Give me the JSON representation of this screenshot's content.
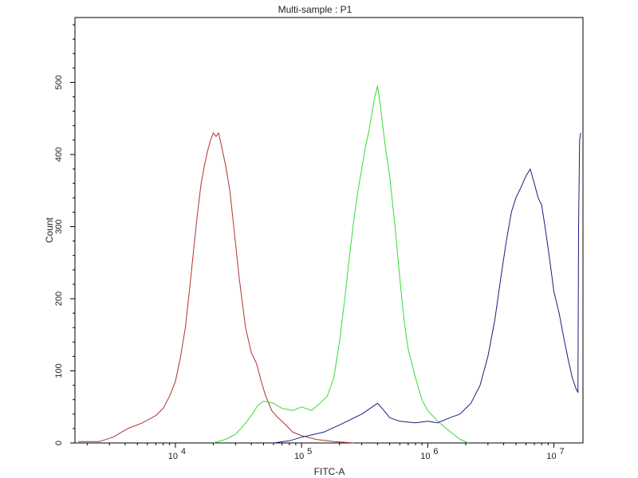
{
  "chart_data": {
    "type": "line",
    "title": "Multi-sample : P1",
    "xlabel": "FITC-A",
    "ylabel": "Count",
    "x_scale": "log",
    "xlim": [
      1600,
      17000000
    ],
    "ylim": [
      0,
      590
    ],
    "x_ticks": [
      {
        "value": 10000,
        "base": "10",
        "exp": "4"
      },
      {
        "value": 100000,
        "base": "10",
        "exp": "5"
      },
      {
        "value": 1000000,
        "base": "10",
        "exp": "6"
      },
      {
        "value": 10000000,
        "base": "10",
        "exp": "7"
      }
    ],
    "y_ticks": [
      {
        "value": 0,
        "label": "0"
      },
      {
        "value": 100,
        "label": "100"
      },
      {
        "value": 200,
        "label": "200"
      },
      {
        "value": 300,
        "label": "300"
      },
      {
        "value": 400,
        "label": "400"
      },
      {
        "value": 500,
        "label": "500"
      }
    ],
    "grid": false,
    "legend": "none",
    "series": [
      {
        "color": "#b03030",
        "points": [
          [
            1700,
            2
          ],
          [
            2500,
            2
          ],
          [
            3200,
            8
          ],
          [
            4200,
            20
          ],
          [
            5500,
            28
          ],
          [
            7000,
            38
          ],
          [
            8000,
            48
          ],
          [
            9000,
            65
          ],
          [
            10000,
            85
          ],
          [
            11000,
            120
          ],
          [
            12000,
            160
          ],
          [
            13000,
            215
          ],
          [
            14000,
            270
          ],
          [
            15000,
            320
          ],
          [
            16000,
            360
          ],
          [
            17000,
            385
          ],
          [
            18000,
            405
          ],
          [
            19000,
            420
          ],
          [
            20000,
            430
          ],
          [
            21000,
            425
          ],
          [
            22000,
            430
          ],
          [
            23000,
            415
          ],
          [
            25000,
            385
          ],
          [
            27000,
            350
          ],
          [
            29000,
            300
          ],
          [
            32000,
            230
          ],
          [
            36000,
            160
          ],
          [
            40000,
            125
          ],
          [
            44000,
            110
          ],
          [
            48000,
            85
          ],
          [
            52000,
            65
          ],
          [
            58000,
            45
          ],
          [
            65000,
            35
          ],
          [
            75000,
            25
          ],
          [
            85000,
            15
          ],
          [
            100000,
            10
          ],
          [
            130000,
            5
          ],
          [
            180000,
            2
          ],
          [
            260000,
            0
          ]
        ]
      },
      {
        "color": "#33dd33",
        "points": [
          [
            20000,
            0
          ],
          [
            25000,
            5
          ],
          [
            30000,
            12
          ],
          [
            35000,
            25
          ],
          [
            40000,
            38
          ],
          [
            45000,
            52
          ],
          [
            50000,
            58
          ],
          [
            60000,
            55
          ],
          [
            70000,
            48
          ],
          [
            85000,
            45
          ],
          [
            100000,
            50
          ],
          [
            120000,
            45
          ],
          [
            140000,
            55
          ],
          [
            160000,
            65
          ],
          [
            180000,
            90
          ],
          [
            200000,
            140
          ],
          [
            220000,
            200
          ],
          [
            240000,
            260
          ],
          [
            260000,
            310
          ],
          [
            280000,
            350
          ],
          [
            300000,
            380
          ],
          [
            320000,
            410
          ],
          [
            340000,
            430
          ],
          [
            360000,
            455
          ],
          [
            380000,
            480
          ],
          [
            400000,
            495
          ],
          [
            420000,
            470
          ],
          [
            440000,
            440
          ],
          [
            470000,
            400
          ],
          [
            500000,
            370
          ],
          [
            550000,
            300
          ],
          [
            600000,
            230
          ],
          [
            650000,
            170
          ],
          [
            700000,
            130
          ],
          [
            800000,
            90
          ],
          [
            900000,
            60
          ],
          [
            1000000,
            45
          ],
          [
            1200000,
            30
          ],
          [
            1400000,
            20
          ],
          [
            1600000,
            12
          ],
          [
            1800000,
            5
          ],
          [
            2100000,
            0
          ]
        ]
      },
      {
        "color": "#1a1a80",
        "points": [
          [
            60000,
            0
          ],
          [
            80000,
            3
          ],
          [
            100000,
            8
          ],
          [
            150000,
            15
          ],
          [
            200000,
            25
          ],
          [
            300000,
            40
          ],
          [
            350000,
            48
          ],
          [
            400000,
            55
          ],
          [
            450000,
            45
          ],
          [
            500000,
            35
          ],
          [
            600000,
            30
          ],
          [
            800000,
            28
          ],
          [
            1000000,
            30
          ],
          [
            1200000,
            28
          ],
          [
            1500000,
            35
          ],
          [
            1800000,
            40
          ],
          [
            2200000,
            55
          ],
          [
            2600000,
            80
          ],
          [
            3000000,
            120
          ],
          [
            3400000,
            170
          ],
          [
            3800000,
            230
          ],
          [
            4200000,
            280
          ],
          [
            4600000,
            320
          ],
          [
            5000000,
            340
          ],
          [
            5500000,
            355
          ],
          [
            6000000,
            370
          ],
          [
            6500000,
            380
          ],
          [
            7000000,
            360
          ],
          [
            7500000,
            340
          ],
          [
            8000000,
            330
          ],
          [
            8500000,
            300
          ],
          [
            9000000,
            270
          ],
          [
            9500000,
            240
          ],
          [
            10000000,
            210
          ],
          [
            11000000,
            180
          ],
          [
            12000000,
            145
          ],
          [
            13000000,
            115
          ],
          [
            14000000,
            90
          ],
          [
            15000000,
            75
          ],
          [
            15500000,
            70
          ],
          [
            15700000,
            300
          ],
          [
            16000000,
            420
          ],
          [
            16300000,
            430
          ]
        ]
      }
    ]
  }
}
